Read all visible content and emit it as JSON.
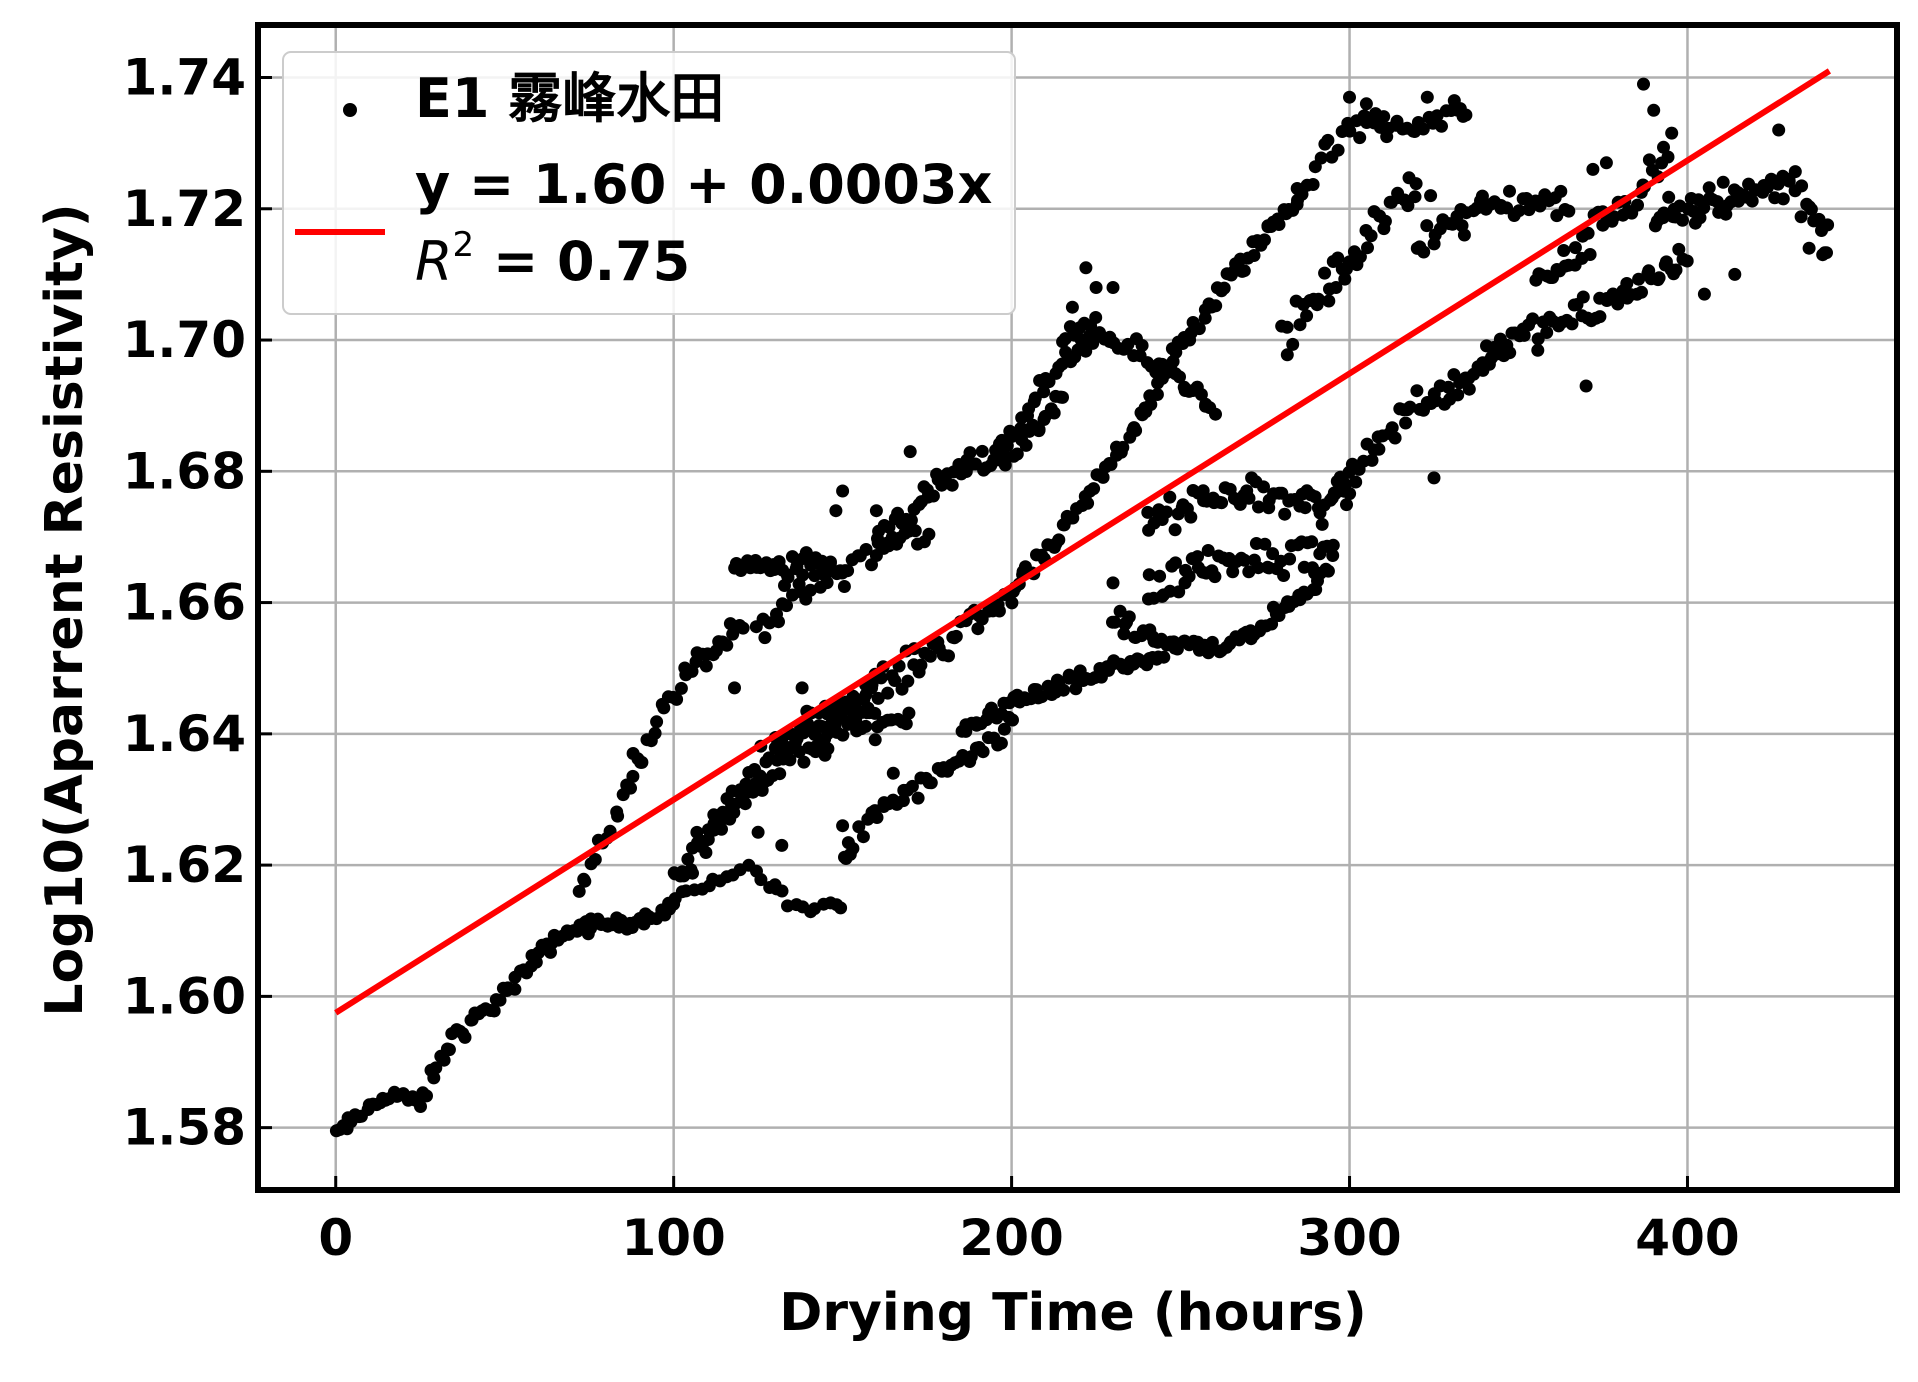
{
  "chart_data": {
    "type": "scatter",
    "title": "",
    "xlabel": "Drying Time (hours)",
    "ylabel": "Log10(Aparrent Resistivity)",
    "xlim": [
      -23,
      462
    ],
    "ylim": [
      1.5705,
      1.748
    ],
    "xticks": [
      0,
      100,
      200,
      300,
      400
    ],
    "xtick_labels": [
      "0",
      "100",
      "200",
      "300",
      "400"
    ],
    "yticks": [
      1.58,
      1.6,
      1.62,
      1.64,
      1.66,
      1.68,
      1.7,
      1.72,
      1.74
    ],
    "ytick_labels": [
      "1.58",
      "1.60",
      "1.62",
      "1.64",
      "1.66",
      "1.68",
      "1.70",
      "1.72",
      "1.74"
    ],
    "grid": true,
    "legend_position": "top-left",
    "legend": {
      "scatter_label": "E1 霧峰水田",
      "fit_equation": "y = 1.60 + 0.0003x",
      "fit_r2_prefix": "R",
      "fit_r2_exponent": "2",
      "fit_r2_value": " = 0.75"
    },
    "series": [
      {
        "name": "E1 霧峰水田",
        "kind": "scatter",
        "color": "#000000",
        "segments": [
          {
            "x0": 0,
            "x1": 25,
            "n": 26,
            "p": [
              [
                0,
                1.579
              ],
              [
                5,
                1.581
              ],
              [
                10,
                1.583
              ],
              [
                15,
                1.585
              ],
              [
                20,
                1.585
              ],
              [
                25,
                1.583
              ]
            ],
            "noise": 0.0009
          },
          {
            "x0": 25,
            "x1": 75,
            "n": 52,
            "p": [
              [
                25,
                1.584
              ],
              [
                35,
                1.594
              ],
              [
                45,
                1.598
              ],
              [
                55,
                1.603
              ],
              [
                65,
                1.609
              ],
              [
                75,
                1.611
              ]
            ],
            "noise": 0.0012
          },
          {
            "x0": 75,
            "x1": 100,
            "n": 26,
            "p": [
              [
                75,
                1.611
              ],
              [
                85,
                1.611
              ],
              [
                92,
                1.612
              ],
              [
                100,
                1.614
              ]
            ],
            "noise": 0.0008
          },
          {
            "x0": 72,
            "x1": 120,
            "n": 46,
            "p": [
              [
                72,
                1.616
              ],
              [
                85,
                1.63
              ],
              [
                95,
                1.642
              ],
              [
                105,
                1.65
              ],
              [
                115,
                1.654
              ],
              [
                120,
                1.656
              ]
            ],
            "noise": 0.0015
          },
          {
            "x0": 100,
            "x1": 150,
            "n": 26,
            "p": [
              [
                100,
                1.615
              ],
              [
                112,
                1.617
              ],
              [
                122,
                1.62
              ],
              [
                130,
                1.616
              ],
              [
                140,
                1.613
              ],
              [
                150,
                1.614
              ]
            ],
            "noise": 0.0008
          },
          {
            "x0": 118,
            "x1": 150,
            "n": 40,
            "p": [
              [
                118,
                1.666
              ],
              [
                125,
                1.666
              ],
              [
                132,
                1.665
              ],
              [
                140,
                1.667
              ],
              [
                150,
                1.664
              ]
            ],
            "noise": 0.0018
          },
          {
            "x0": 125,
            "x1": 175,
            "n": 40,
            "p": [
              [
                125,
                1.656
              ],
              [
                140,
                1.662
              ],
              [
                150,
                1.665
              ],
              [
                160,
                1.668
              ],
              [
                175,
                1.671
              ]
            ],
            "noise": 0.0018
          },
          {
            "x0": 100,
            "x1": 160,
            "n": 70,
            "p": [
              [
                100,
                1.617
              ],
              [
                115,
                1.628
              ],
              [
                130,
                1.638
              ],
              [
                145,
                1.643
              ],
              [
                160,
                1.645
              ]
            ],
            "noise": 0.0022
          },
          {
            "x0": 105,
            "x1": 170,
            "n": 50,
            "p": [
              [
                105,
                1.622
              ],
              [
                120,
                1.63
              ],
              [
                135,
                1.636
              ],
              [
                150,
                1.64
              ],
              [
                170,
                1.643
              ]
            ],
            "noise": 0.0018
          },
          {
            "x0": 140,
            "x1": 200,
            "n": 58,
            "p": [
              [
                140,
                1.64
              ],
              [
                155,
                1.646
              ],
              [
                170,
                1.65
              ],
              [
                185,
                1.656
              ],
              [
                200,
                1.661
              ]
            ],
            "noise": 0.0022
          },
          {
            "x0": 160,
            "x1": 215,
            "n": 60,
            "p": [
              [
                160,
                1.67
              ],
              [
                175,
                1.676
              ],
              [
                185,
                1.68
              ],
              [
                200,
                1.683
              ],
              [
                215,
                1.691
              ]
            ],
            "noise": 0.0018
          },
          {
            "x0": 195,
            "x1": 225,
            "n": 30,
            "p": [
              [
                195,
                1.683
              ],
              [
                205,
                1.69
              ],
              [
                215,
                1.696
              ],
              [
                225,
                1.702
              ]
            ],
            "noise": 0.0015
          },
          {
            "x0": 215,
            "x1": 260,
            "n": 44,
            "p": [
              [
                215,
                1.7
              ],
              [
                225,
                1.701
              ],
              [
                240,
                1.697
              ],
              [
                250,
                1.694
              ],
              [
                260,
                1.69
              ]
            ],
            "noise": 0.0016
          },
          {
            "x0": 150,
            "x1": 200,
            "n": 44,
            "p": [
              [
                150,
                1.621
              ],
              [
                160,
                1.628
              ],
              [
                170,
                1.631
              ],
              [
                180,
                1.634
              ],
              [
                190,
                1.637
              ],
              [
                200,
                1.641
              ]
            ],
            "noise": 0.0014
          },
          {
            "x0": 185,
            "x1": 245,
            "n": 60,
            "p": [
              [
                185,
                1.64
              ],
              [
                200,
                1.645
              ],
              [
                215,
                1.647
              ],
              [
                230,
                1.65
              ],
              [
                245,
                1.652
              ]
            ],
            "noise": 0.0012
          },
          {
            "x0": 200,
            "x1": 240,
            "n": 44,
            "p": [
              [
                200,
                1.662
              ],
              [
                210,
                1.667
              ],
              [
                220,
                1.674
              ],
              [
                230,
                1.682
              ],
              [
                240,
                1.69
              ]
            ],
            "noise": 0.0014
          },
          {
            "x0": 240,
            "x1": 285,
            "n": 52,
            "p": [
              [
                240,
                1.69
              ],
              [
                250,
                1.699
              ],
              [
                260,
                1.706
              ],
              [
                270,
                1.713
              ],
              [
                285,
                1.722
              ]
            ],
            "noise": 0.0016
          },
          {
            "x0": 285,
            "x1": 335,
            "n": 40,
            "p": [
              [
                285,
                1.722
              ],
              [
                295,
                1.73
              ],
              [
                305,
                1.733
              ],
              [
                320,
                1.733
              ],
              [
                335,
                1.735
              ]
            ],
            "noise": 0.0018
          },
          {
            "x0": 240,
            "x1": 300,
            "n": 60,
            "p": [
              [
                240,
                1.672
              ],
              [
                255,
                1.675
              ],
              [
                270,
                1.677
              ],
              [
                285,
                1.675
              ],
              [
                300,
                1.677
              ]
            ],
            "noise": 0.0022
          },
          {
            "x0": 230,
            "x1": 295,
            "n": 64,
            "p": [
              [
                230,
                1.657
              ],
              [
                245,
                1.654
              ],
              [
                260,
                1.653
              ],
              [
                275,
                1.656
              ],
              [
                285,
                1.661
              ],
              [
                295,
                1.666
              ]
            ],
            "noise": 0.0014
          },
          {
            "x0": 240,
            "x1": 295,
            "n": 52,
            "p": [
              [
                240,
                1.662
              ],
              [
                255,
                1.665
              ],
              [
                265,
                1.667
              ],
              [
                280,
                1.667
              ],
              [
                295,
                1.669
              ]
            ],
            "noise": 0.0026
          },
          {
            "x0": 280,
            "x1": 320,
            "n": 40,
            "p": [
              [
                280,
                1.7
              ],
              [
                290,
                1.706
              ],
              [
                300,
                1.712
              ],
              [
                310,
                1.718
              ],
              [
                320,
                1.725
              ]
            ],
            "noise": 0.0026
          },
          {
            "x0": 295,
            "x1": 345,
            "n": 50,
            "p": [
              [
                295,
                1.677
              ],
              [
                305,
                1.682
              ],
              [
                315,
                1.688
              ],
              [
                325,
                1.692
              ],
              [
                335,
                1.694
              ],
              [
                345,
                1.7
              ]
            ],
            "noise": 0.0022
          },
          {
            "x0": 320,
            "x1": 365,
            "n": 40,
            "p": [
              [
                320,
                1.715
              ],
              [
                330,
                1.718
              ],
              [
                340,
                1.721
              ],
              [
                350,
                1.721
              ],
              [
                365,
                1.721
              ]
            ],
            "noise": 0.0022
          },
          {
            "x0": 340,
            "x1": 400,
            "n": 60,
            "p": [
              [
                340,
                1.698
              ],
              [
                355,
                1.701
              ],
              [
                370,
                1.704
              ],
              [
                385,
                1.708
              ],
              [
                400,
                1.713
              ]
            ],
            "noise": 0.0022
          },
          {
            "x0": 355,
            "x1": 395,
            "n": 40,
            "p": [
              [
                355,
                1.708
              ],
              [
                365,
                1.712
              ],
              [
                375,
                1.718
              ],
              [
                385,
                1.722
              ],
              [
                395,
                1.73
              ]
            ],
            "noise": 0.0024
          },
          {
            "x0": 390,
            "x1": 442,
            "n": 60,
            "p": [
              [
                390,
                1.717
              ],
              [
                405,
                1.721
              ],
              [
                420,
                1.723
              ],
              [
                432,
                1.724
              ],
              [
                442,
                1.715
              ]
            ],
            "noise": 0.0028
          }
        ],
        "extra_points": [
          [
            387,
            1.739
          ],
          [
            390,
            1.735
          ],
          [
            300,
            1.737
          ],
          [
            305,
            1.736
          ],
          [
            311,
            1.731
          ],
          [
            332,
            1.735
          ],
          [
            323,
            1.737
          ],
          [
            222,
            1.711
          ],
          [
            225,
            1.708
          ],
          [
            160,
            1.674
          ],
          [
            170,
            1.683
          ],
          [
            148,
            1.674
          ],
          [
            150,
            1.677
          ],
          [
            118,
            1.647
          ],
          [
            88,
            1.637
          ],
          [
            132,
            1.623
          ],
          [
            150,
            1.626
          ],
          [
            151,
            1.621
          ],
          [
            165,
            1.634
          ],
          [
            255,
            1.667
          ],
          [
            290,
            1.662
          ],
          [
            296,
            1.708
          ],
          [
            218,
            1.705
          ],
          [
            230,
            1.708
          ],
          [
            440,
            1.713
          ],
          [
            436,
            1.714
          ],
          [
            427,
            1.732
          ],
          [
            414,
            1.71
          ],
          [
            405,
            1.707
          ],
          [
            370,
            1.693
          ],
          [
            372,
            1.726
          ],
          [
            376,
            1.727
          ],
          [
            230,
            1.663
          ],
          [
            234,
            1.657
          ],
          [
            325,
            1.679
          ],
          [
            334,
            1.716
          ],
          [
            324,
            1.722
          ],
          [
            130,
            1.617
          ],
          [
            125,
            1.625
          ],
          [
            138,
            1.647
          ]
        ]
      },
      {
        "name": "fit",
        "kind": "line",
        "color": "#ff0000",
        "x": [
          0,
          442
        ],
        "y": [
          1.5975,
          1.741
        ]
      }
    ]
  }
}
